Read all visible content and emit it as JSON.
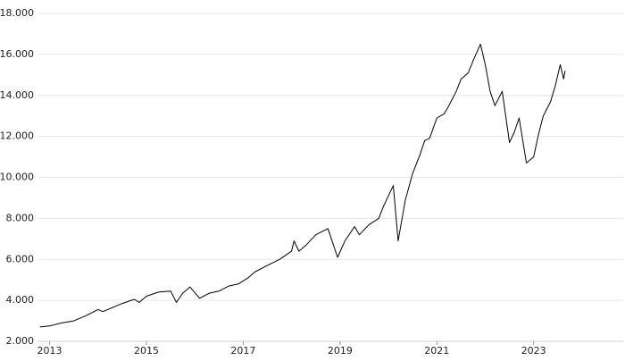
{
  "chart_data": {
    "type": "line",
    "x": [
      2012.8,
      2013.0,
      2013.25,
      2013.5,
      2013.75,
      2014.0,
      2014.1,
      2014.25,
      2014.5,
      2014.75,
      2014.85,
      2015.0,
      2015.25,
      2015.5,
      2015.62,
      2015.75,
      2015.9,
      2016.1,
      2016.3,
      2016.5,
      2016.7,
      2016.9,
      2017.1,
      2017.25,
      2017.5,
      2017.75,
      2018.0,
      2018.05,
      2018.15,
      2018.3,
      2018.5,
      2018.75,
      2018.95,
      2019.1,
      2019.3,
      2019.4,
      2019.6,
      2019.8,
      2019.9,
      2020.1,
      2020.2,
      2020.35,
      2020.5,
      2020.65,
      2020.75,
      2020.85,
      2021.0,
      2021.15,
      2021.25,
      2021.4,
      2021.5,
      2021.65,
      2021.75,
      2021.9,
      2022.0,
      2022.1,
      2022.2,
      2022.35,
      2022.5,
      2022.6,
      2022.7,
      2022.85,
      2023.0,
      2023.1,
      2023.2,
      2023.35,
      2023.45,
      2023.55,
      2023.62,
      2023.65
    ],
    "series": [
      {
        "color": "#000000",
        "values": [
          2700,
          2750,
          2900,
          3000,
          3250,
          3550,
          3450,
          3600,
          3850,
          4050,
          3900,
          4200,
          4400,
          4450,
          3900,
          4350,
          4650,
          4100,
          4350,
          4450,
          4700,
          4800,
          5100,
          5400,
          5700,
          6000,
          6400,
          6900,
          6400,
          6700,
          7200,
          7500,
          6100,
          6900,
          7600,
          7200,
          7700,
          8000,
          8600,
          9600,
          6900,
          8900,
          10200,
          11100,
          11800,
          11900,
          12900,
          13100,
          13500,
          14200,
          14800,
          15100,
          15700,
          16500,
          15500,
          14200,
          13500,
          14200,
          11700,
          12200,
          12900,
          10700,
          11000,
          12100,
          13000,
          13700,
          14500,
          15500,
          14800,
          15200
        ]
      }
    ],
    "xlim": [
      2012.75,
      2024.85
    ],
    "xticks": [
      2013,
      2015,
      2017,
      2019,
      2021,
      2023
    ],
    "ylim": [
      2000,
      18000
    ],
    "yticks": [
      {
        "value": 2000,
        "label": "2.000"
      },
      {
        "value": 4000,
        "label": "4.000"
      },
      {
        "value": 6000,
        "label": "6.000"
      },
      {
        "value": 8000,
        "label": "8.000"
      },
      {
        "value": 10000,
        "label": "10.000"
      },
      {
        "value": 12000,
        "label": "12.000"
      },
      {
        "value": 14000,
        "label": "14.000"
      },
      {
        "value": 16000,
        "label": "16.000"
      },
      {
        "value": 18000,
        "label": "18.000"
      }
    ],
    "grid": true
  }
}
